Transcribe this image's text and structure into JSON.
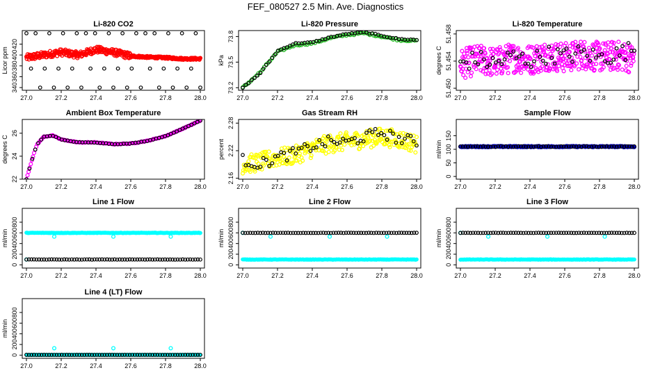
{
  "page_title": "FEF_080527  2.5 Min. Ave. Diagnostics",
  "colors": {
    "red": "#ff0000",
    "green": "#22bb22",
    "magenta": "#ff00ff",
    "yellow": "#ffff00",
    "blue": "#0000cc",
    "cyan": "#00ffff",
    "black": "#000000"
  },
  "chart_data": [
    {
      "id": "co2",
      "type": "scatter",
      "title": "Li-820 CO2",
      "ylabel": "Licor ppm",
      "xlim": [
        27.0,
        28.0
      ],
      "ylim": [
        335,
        445
      ],
      "xticks": [
        27.0,
        27.2,
        27.4,
        27.6,
        27.8,
        28.0
      ],
      "yticks": [
        340,
        360,
        380,
        400,
        420
      ],
      "series": [
        {
          "name": "main",
          "color": "red",
          "x": [
            27.0,
            27.1,
            27.2,
            27.3,
            27.4,
            27.5,
            27.6,
            27.7,
            27.8,
            27.9,
            28.0
          ],
          "y": [
            395,
            400,
            405,
            400,
            410,
            405,
            398,
            396,
            395,
            393,
            393
          ]
        },
        {
          "name": "reference",
          "color": "black",
          "x": [
            27.0,
            27.08,
            27.17,
            27.25,
            27.33,
            27.42,
            27.5,
            27.58,
            27.67,
            27.75,
            27.83,
            27.92,
            28.0
          ],
          "y": [
            440,
            375,
            440,
            340,
            375,
            440,
            340,
            375,
            440,
            340,
            375,
            440,
            340
          ]
        }
      ]
    },
    {
      "id": "pressure",
      "type": "scatter",
      "title": "Li-820 Pressure",
      "ylabel": "kPa",
      "xlim": [
        27.0,
        28.0
      ],
      "ylim": [
        73.17,
        73.87
      ],
      "xticks": [
        27.0,
        27.2,
        27.4,
        27.6,
        27.8,
        28.0
      ],
      "yticks": [
        73.2,
        73.5,
        73.8
      ],
      "series": [
        {
          "name": "main",
          "color": "green",
          "x": [
            27.0,
            27.1,
            27.2,
            27.3,
            27.4,
            27.5,
            27.6,
            27.7,
            27.8,
            27.9,
            28.0
          ],
          "y": [
            73.2,
            73.38,
            73.62,
            73.7,
            73.72,
            73.78,
            73.82,
            73.84,
            73.8,
            73.76,
            73.75
          ]
        },
        {
          "name": "reference",
          "color": "black",
          "x": [
            27.0,
            27.1,
            27.2,
            27.3,
            27.4,
            27.5,
            27.6,
            27.7,
            27.8,
            27.9,
            28.0
          ],
          "y": [
            73.2,
            73.37,
            73.63,
            73.72,
            73.73,
            73.79,
            73.83,
            73.85,
            73.81,
            73.77,
            73.76
          ]
        }
      ]
    },
    {
      "id": "temperature",
      "type": "scatter",
      "title": "Li-820 Temperature",
      "ylabel": "degrees C",
      "xlim": [
        27.0,
        28.0
      ],
      "ylim": [
        51.4497,
        51.4585
      ],
      "xticks": [
        27.0,
        27.2,
        27.4,
        27.6,
        27.8,
        28.0
      ],
      "yticks": [
        51.45,
        51.454,
        51.458
      ],
      "ytick_labels": [
        "51.450",
        "51.454",
        "51.458"
      ],
      "series": [
        {
          "name": "main",
          "color": "magenta",
          "x": [
            27.0,
            27.1,
            27.2,
            27.3,
            27.4,
            27.5,
            27.6,
            27.7,
            27.8,
            27.9,
            28.0
          ],
          "y": [
            51.4535,
            51.4542,
            51.4538,
            51.4545,
            51.4542,
            51.4548,
            51.4545,
            51.455,
            51.4546,
            51.4548,
            51.4544
          ]
        },
        {
          "name": "reference",
          "color": "black",
          "x": [
            27.0,
            27.1,
            27.2,
            27.3,
            27.4,
            27.5,
            27.6,
            27.7,
            27.8,
            27.9,
            28.0
          ],
          "y": [
            51.4537,
            51.4543,
            51.4536,
            51.4547,
            51.4541,
            51.455,
            51.4547,
            51.4552,
            51.4545,
            51.455,
            51.4558
          ]
        }
      ]
    },
    {
      "id": "ambient",
      "type": "scatter",
      "title": "Ambient Box Temperature",
      "ylabel": "degrees C",
      "xlim": [
        27.0,
        28.0
      ],
      "ylim": [
        22.0,
        27.2
      ],
      "xticks": [
        27.0,
        27.2,
        27.4,
        27.6,
        27.8,
        28.0
      ],
      "yticks": [
        22,
        24,
        26
      ],
      "series": [
        {
          "name": "main",
          "color": "magenta",
          "x": [
            27.0,
            27.03,
            27.06,
            27.1,
            27.15,
            27.2,
            27.3,
            27.4,
            27.5,
            27.6,
            27.7,
            27.8,
            27.9,
            28.0
          ],
          "y": [
            22.0,
            23.6,
            25.0,
            25.7,
            25.8,
            25.45,
            25.2,
            25.2,
            25.05,
            25.1,
            25.35,
            25.75,
            26.4,
            27.1
          ]
        },
        {
          "name": "reference",
          "color": "black",
          "x": [
            27.0,
            27.03,
            27.06,
            27.1,
            27.15,
            27.2,
            27.3,
            27.4,
            27.5,
            27.6,
            27.7,
            27.8,
            27.9,
            28.0
          ],
          "y": [
            22.0,
            23.6,
            25.0,
            25.7,
            25.8,
            25.45,
            25.2,
            25.2,
            25.05,
            25.1,
            25.35,
            25.75,
            26.4,
            27.1
          ]
        }
      ]
    },
    {
      "id": "rh",
      "type": "scatter",
      "title": "Gas Stream RH",
      "ylabel": "percent",
      "xlim": [
        27.0,
        28.0
      ],
      "ylim": [
        2.158,
        2.288
      ],
      "xticks": [
        27.0,
        27.2,
        27.4,
        27.6,
        27.8,
        28.0
      ],
      "yticks": [
        2.16,
        2.22,
        2.28
      ],
      "series": [
        {
          "name": "main",
          "color": "yellow",
          "x": [
            27.0,
            27.1,
            27.2,
            27.3,
            27.4,
            27.5,
            27.6,
            27.7,
            27.8,
            27.9,
            28.0
          ],
          "y": [
            2.19,
            2.195,
            2.205,
            2.21,
            2.225,
            2.235,
            2.24,
            2.245,
            2.25,
            2.245,
            2.235
          ]
        },
        {
          "name": "reference",
          "color": "black",
          "x": [
            27.0,
            27.1,
            27.2,
            27.3,
            27.4,
            27.5,
            27.6,
            27.7,
            27.8,
            27.9,
            28.0
          ],
          "y": [
            2.2,
            2.19,
            2.205,
            2.215,
            2.23,
            2.24,
            2.238,
            2.25,
            2.26,
            2.245,
            2.24
          ]
        }
      ]
    },
    {
      "id": "sample_flow",
      "type": "scatter",
      "title": "Sample Flow",
      "ylabel": "ml/min",
      "xlim": [
        27.0,
        28.0
      ],
      "ylim": [
        -10,
        210
      ],
      "xticks": [
        27.0,
        27.2,
        27.4,
        27.6,
        27.8,
        28.0
      ],
      "yticks": [
        0,
        50,
        100,
        150
      ],
      "series": [
        {
          "name": "main",
          "color": "blue",
          "x": [
            27.0,
            28.0
          ],
          "y": [
            110,
            110
          ]
        },
        {
          "name": "reference",
          "color": "black",
          "x": [
            27.0,
            28.0
          ],
          "y": [
            110,
            110
          ]
        }
      ]
    },
    {
      "id": "line1",
      "type": "scatter",
      "title": "Line 1 Flow",
      "ylabel": "ml/min",
      "xlim": [
        27.0,
        28.0
      ],
      "ylim": [
        -60,
        1060
      ],
      "xticks": [
        27.0,
        27.2,
        27.4,
        27.6,
        27.8,
        28.0
      ],
      "yticks": [
        0,
        200,
        400,
        600,
        800
      ],
      "series": [
        {
          "name": "main",
          "color": "cyan",
          "x": [
            27.0,
            28.0
          ],
          "y": [
            600,
            600
          ],
          "outliers_x": [
            27.0,
            27.16,
            27.5,
            27.83
          ],
          "outliers_y": [
            100,
            530,
            530,
            530
          ]
        },
        {
          "name": "reference",
          "color": "black",
          "x": [
            27.0,
            28.0
          ],
          "y": [
            100,
            100
          ]
        }
      ]
    },
    {
      "id": "line2",
      "type": "scatter",
      "title": "Line 2 Flow",
      "ylabel": "ml/min",
      "xlim": [
        27.0,
        28.0
      ],
      "ylim": [
        -60,
        1060
      ],
      "xticks": [
        27.0,
        27.2,
        27.4,
        27.6,
        27.8,
        28.0
      ],
      "yticks": [
        0,
        200,
        400,
        600,
        800
      ],
      "series": [
        {
          "name": "main",
          "color": "cyan",
          "x": [
            27.0,
            28.0
          ],
          "y": [
            100,
            100
          ],
          "outliers_x": [
            27.0,
            27.16,
            27.5,
            27.83
          ],
          "outliers_y": [
            600,
            530,
            530,
            530
          ]
        },
        {
          "name": "reference",
          "color": "black",
          "x": [
            27.0,
            28.0
          ],
          "y": [
            600,
            600
          ]
        }
      ]
    },
    {
      "id": "line3",
      "type": "scatter",
      "title": "Line 3 Flow",
      "ylabel": "ml/min",
      "xlim": [
        27.0,
        28.0
      ],
      "ylim": [
        -60,
        1060
      ],
      "xticks": [
        27.0,
        27.2,
        27.4,
        27.6,
        27.8,
        28.0
      ],
      "yticks": [
        0,
        200,
        400,
        600,
        800
      ],
      "series": [
        {
          "name": "main",
          "color": "cyan",
          "x": [
            27.0,
            28.0
          ],
          "y": [
            100,
            100
          ],
          "outliers_x": [
            27.0,
            27.16,
            27.5,
            27.83
          ],
          "outliers_y": [
            600,
            530,
            530,
            530
          ]
        },
        {
          "name": "reference",
          "color": "black",
          "x": [
            27.0,
            28.0
          ],
          "y": [
            600,
            600
          ]
        }
      ]
    },
    {
      "id": "line4",
      "type": "scatter",
      "title": "Line 4 (LT) Flow",
      "ylabel": "ml/min",
      "xlim": [
        27.0,
        28.0
      ],
      "ylim": [
        -60,
        1060
      ],
      "xticks": [
        27.0,
        27.2,
        27.4,
        27.6,
        27.8,
        28.0
      ],
      "yticks": [
        0,
        200,
        400,
        600,
        800
      ],
      "series": [
        {
          "name": "main",
          "color": "cyan",
          "x": [
            27.0,
            28.0
          ],
          "y": [
            5,
            5
          ],
          "outliers_x": [
            27.16,
            27.5,
            27.83
          ],
          "outliers_y": [
            130,
            130,
            130
          ]
        },
        {
          "name": "reference",
          "color": "black",
          "x": [
            27.0,
            28.0
          ],
          "y": [
            5,
            5
          ]
        }
      ]
    }
  ]
}
